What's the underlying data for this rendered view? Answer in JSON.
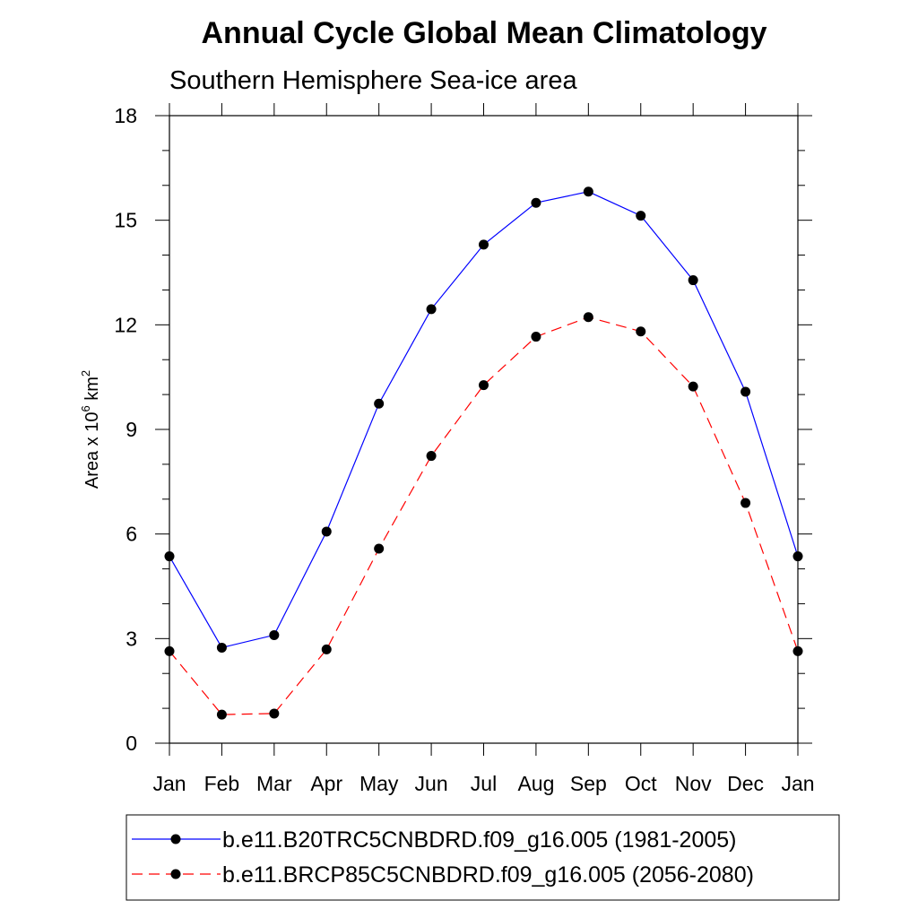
{
  "chart_data": {
    "type": "line",
    "title": "Annual Cycle Global Mean Climatology",
    "subtitle": "Southern Hemisphere Sea-ice area",
    "ylabel": "Area x 10",
    "ylabel_exp1": "6",
    "ylabel_unit": " km",
    "ylabel_exp2": "2",
    "ylim": [
      0,
      18
    ],
    "yticks": [
      0,
      3,
      6,
      9,
      12,
      15,
      18
    ],
    "ytick_labels": [
      "0",
      "3",
      "6",
      "9",
      "12",
      "15",
      "18"
    ],
    "categories": [
      "Jan",
      "Feb",
      "Mar",
      "Apr",
      "May",
      "Jun",
      "Jul",
      "Aug",
      "Sep",
      "Oct",
      "Nov",
      "Dec",
      "Jan"
    ],
    "grid": false,
    "legend_position": "bottom",
    "series": [
      {
        "name": "b.e11.B20TRC5CNBDRD.f09_g16.005 (1981-2005)",
        "color": "#0000ff",
        "dash": "solid",
        "values": [
          5.36,
          2.74,
          3.1,
          6.07,
          9.74,
          12.45,
          14.3,
          15.5,
          15.82,
          15.13,
          13.28,
          10.08,
          5.36
        ]
      },
      {
        "name": "b.e11.BRCP85C5CNBDRD.f09_g16.005 (2056-2080)",
        "color": "#ff0000",
        "dash": "dashed",
        "values": [
          2.64,
          0.82,
          0.85,
          2.69,
          5.58,
          8.24,
          10.27,
          11.66,
          12.22,
          11.81,
          10.23,
          6.89,
          2.64
        ]
      }
    ]
  }
}
